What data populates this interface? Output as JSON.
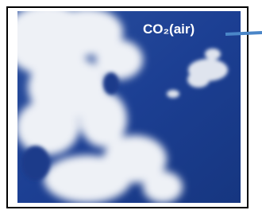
{
  "label": "CO₂(air)"
}
